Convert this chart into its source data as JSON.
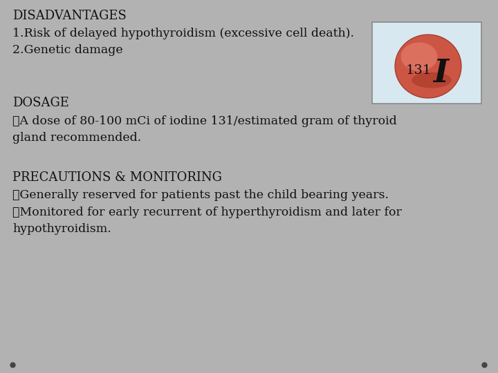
{
  "slide_bg": "#b2b2b2",
  "text_color": "#111111",
  "title1": "DISADVANTAGES",
  "line1": "1.Risk of delayed hypothyroidism (excessive cell death).",
  "line2": "2.Genetic damage",
  "title2": "DOSAGE",
  "line3": "➤A dose of 80-100 mCi of iodine 131/estimated gram of thyroid",
  "line3b": "gland recommended.",
  "title3": "PRECAUTIONS & MONITORING",
  "line4": "✓Generally reserved for patients past the child bearing years.",
  "line5": "✓Monitored for early recurrent of hyperthyroidism and later for",
  "line5b": "hypothyroidism.",
  "iodine_label": "131",
  "iodine_symbol": "I",
  "font_size_title": 13,
  "font_size_body": 12.5,
  "bullet_color": "#444444",
  "box_bg": "#d8e8f0",
  "sphere_color": "#cc5544",
  "sphere_highlight": "#e88877",
  "sphere_edge": "#993322"
}
